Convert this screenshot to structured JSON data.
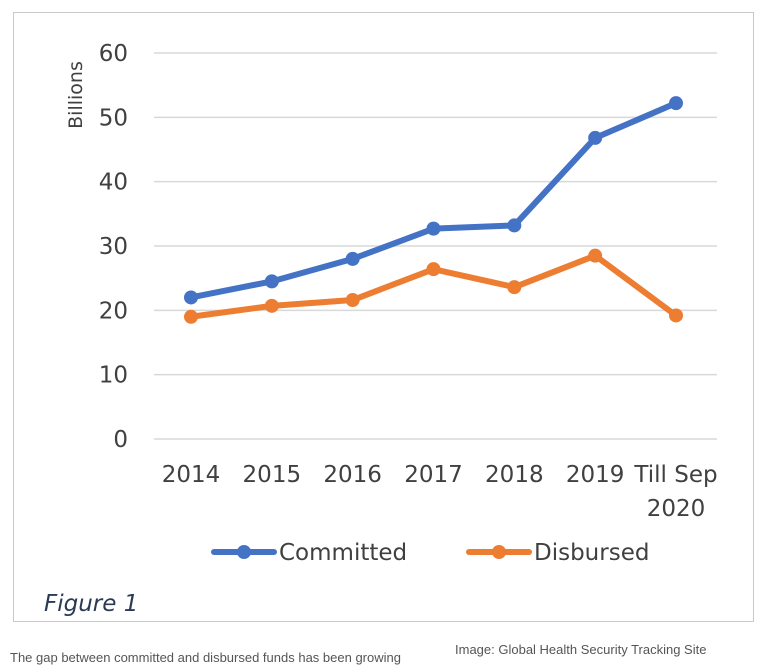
{
  "chart_data": {
    "type": "line",
    "title": "",
    "xlabel": "",
    "ylabel": "Billions",
    "ylim": [
      0,
      60
    ],
    "yticks": [
      0,
      10,
      20,
      30,
      40,
      50,
      60
    ],
    "categories": [
      [
        "2014"
      ],
      [
        "2015"
      ],
      [
        "2016"
      ],
      [
        "2017"
      ],
      [
        "2018"
      ],
      [
        "2019"
      ],
      [
        "Till Sep",
        "2020"
      ]
    ],
    "grid": true,
    "legend": "bottom",
    "series": [
      {
        "name": "Committed",
        "color": "#4472C4",
        "values": [
          22.0,
          24.5,
          28.0,
          32.7,
          33.2,
          46.8,
          52.2
        ]
      },
      {
        "name": "Disbursed",
        "color": "#ED7D31",
        "values": [
          19.0,
          20.7,
          21.6,
          26.4,
          23.6,
          28.5,
          19.2
        ]
      }
    ]
  },
  "figure_label": "Figure 1",
  "caption": "The gap between committed and disbursed funds has been growing",
  "credit": "Image: Global Health Security Tracking Site"
}
